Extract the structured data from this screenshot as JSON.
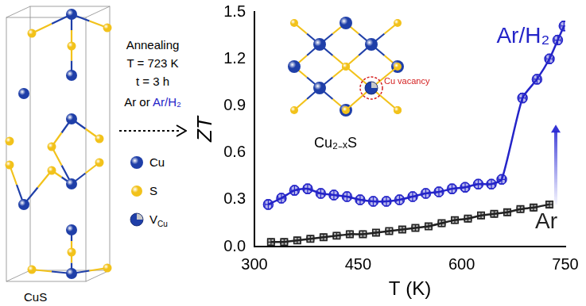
{
  "chart_data": {
    "type": "line",
    "x_label": "T (K)",
    "y_label": "ZT",
    "xlim": [
      300,
      750
    ],
    "xticks": [
      300,
      450,
      600,
      750
    ],
    "ylim": [
      0,
      1.5
    ],
    "yticks": [
      {
        "value": 0,
        "label": "0.0"
      },
      0.3,
      0.6,
      0.9,
      1.2,
      1.5
    ],
    "grid": false,
    "series": [
      {
        "name": "Ar/H₂",
        "color": "#2424c8",
        "marker": "circle",
        "x": [
          320,
          339,
          358,
          377,
          396,
          415,
          434,
          453,
          472,
          491,
          510,
          529,
          548,
          567,
          586,
          605,
          624,
          643,
          658,
          688,
          709,
          727,
          739,
          748
        ],
        "values": [
          0.27,
          0.31,
          0.36,
          0.37,
          0.34,
          0.33,
          0.32,
          0.3,
          0.29,
          0.29,
          0.3,
          0.32,
          0.34,
          0.35,
          0.37,
          0.38,
          0.4,
          0.4,
          0.43,
          0.95,
          1.07,
          1.2,
          1.32,
          1.41
        ],
        "y_errors": [
          0.03,
          0.03,
          0.03,
          0.03,
          0.03,
          0.03,
          0.03,
          0.03,
          0.03,
          0.03,
          0.03,
          0.03,
          0.03,
          0.03,
          0.03,
          0.03,
          0.03,
          0.03,
          0.03,
          0.03,
          0.03,
          0.03,
          0.03,
          0.03
        ],
        "x_errors": [
          5,
          5,
          5,
          5,
          5,
          5,
          5,
          5,
          5,
          5,
          5,
          5,
          5,
          5,
          5,
          5,
          5,
          5,
          5,
          5,
          5,
          5,
          5,
          5
        ]
      },
      {
        "name": "Ar",
        "color": "#222222",
        "marker": "square",
        "x": [
          324,
          343,
          362,
          381,
          400,
          419,
          438,
          457,
          476,
          495,
          514,
          533,
          552,
          571,
          590,
          609,
          628,
          647,
          666,
          685,
          704,
          727
        ],
        "values": [
          0.03,
          0.03,
          0.04,
          0.05,
          0.06,
          0.07,
          0.08,
          0.08,
          0.09,
          0.1,
          0.11,
          0.12,
          0.13,
          0.15,
          0.17,
          0.18,
          0.2,
          0.21,
          0.22,
          0.24,
          0.25,
          0.27
        ],
        "y_errors": [
          0.02,
          0.02,
          0.02,
          0.02,
          0.02,
          0.02,
          0.02,
          0.02,
          0.02,
          0.02,
          0.02,
          0.02,
          0.02,
          0.02,
          0.02,
          0.02,
          0.02,
          0.02,
          0.02,
          0.02,
          0.02,
          0.02
        ],
        "x_errors": [
          5,
          5,
          5,
          5,
          5,
          5,
          5,
          5,
          5,
          5,
          5,
          5,
          5,
          5,
          5,
          5,
          5,
          5,
          5,
          5,
          5,
          5
        ]
      }
    ]
  },
  "diagram": {
    "structure_label": "CuS",
    "process": [
      "Annealing",
      "T = 723 K",
      "t = 3 h"
    ],
    "atmosphere": [
      {
        "text": "Ar",
        "color": "#000000"
      },
      {
        "text": "or",
        "color": "#000000"
      },
      {
        "text": "Ar/H₂",
        "color": "#2424c8"
      }
    ],
    "atom_legend": [
      {
        "label": "Cu",
        "color": "#1f3fa8"
      },
      {
        "label": "S",
        "color": "#f2c21b"
      },
      {
        "label": "V",
        "subscript": "Cu",
        "color": "#1f3fa8"
      }
    ],
    "inset_label": "Cu₂₋ₓS",
    "inset_note": "Cu vacancy"
  }
}
